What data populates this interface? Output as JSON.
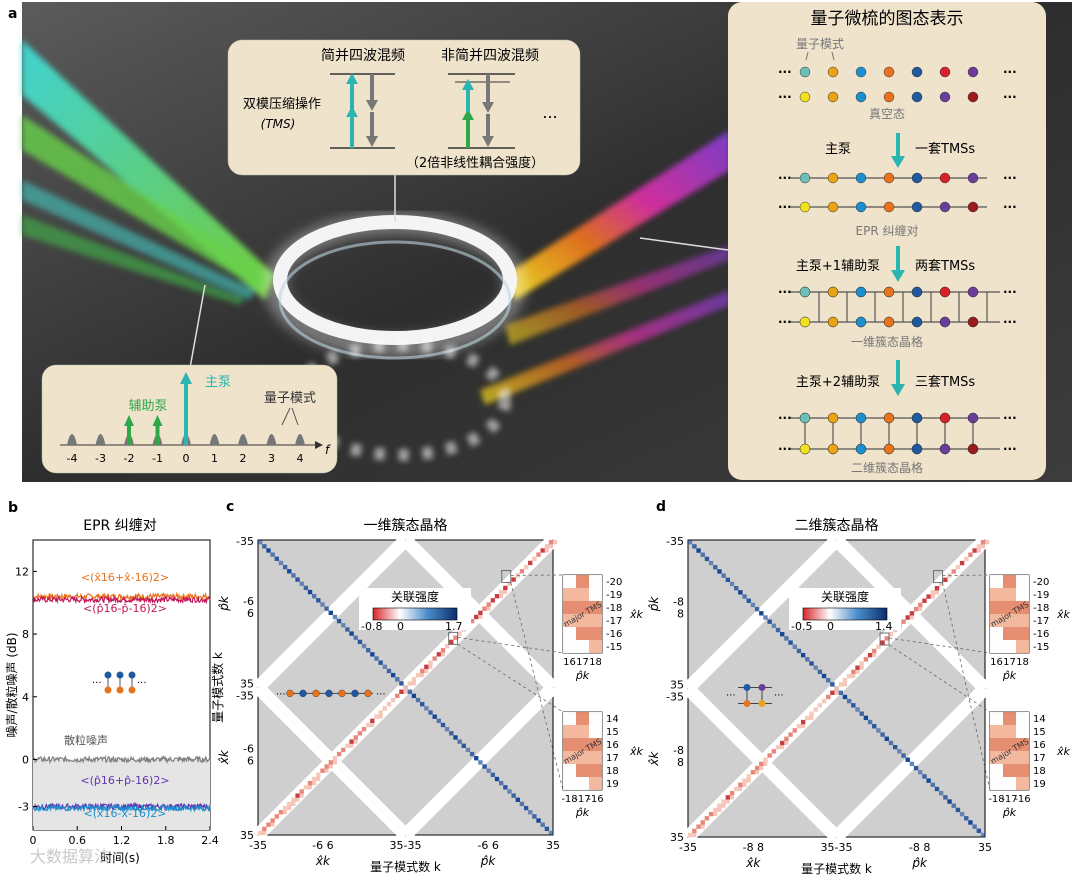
{
  "panel_a": {
    "label": "a",
    "tms_box": {
      "degenerate": "简并四波混频",
      "nondegenerate": "非简并四波混频",
      "operation": "双模压缩操作",
      "operation_abbr": "(TMS)",
      "ellipsis": "...",
      "note": "（2倍非线性耦合强度）"
    },
    "spectrum_box": {
      "main_pump": "主泵",
      "aux_pump": "辅助泵",
      "quantum_modes": "量子模式",
      "ticks": [
        "-4",
        "-3",
        "-2",
        "-1",
        "0",
        "1",
        "2",
        "3",
        "4"
      ],
      "axis_label": "f"
    },
    "graph_box": {
      "title": "量子微梳的图态表示",
      "quantum_modes": "量子模式",
      "vacuum": "真空态",
      "main_pump": "主泵",
      "one_set": "一套TMSs",
      "epr": "EPR 纠缠对",
      "pump_1aux": "主泵+1辅助泵",
      "two_sets": "两套TMSs",
      "cluster_1d": "一维簇态晶格",
      "pump_2aux": "主泵+2辅助泵",
      "three_sets": "三套TMSs",
      "cluster_2d": "二维簇态晶格",
      "dots": "···"
    },
    "colors": [
      "#6dbfb8",
      "#e8a317",
      "#1c8fce",
      "#e8731c",
      "#1f5aa0",
      "#d72027",
      "#6b3d9a"
    ],
    "colors_bottom": [
      "#f2e21c",
      "#e8a317",
      "#1c8fce",
      "#e8731c",
      "#1f5aa0",
      "#6b3d9a",
      "#9b1b1b"
    ]
  },
  "panel_b": {
    "label": "b",
    "title": "EPR 纠缠对",
    "ylabel": "噪声/散粒噪声 (dB)",
    "xlabel": "时间(s)",
    "shot_noise": "散粒噪声",
    "legend_x_sum": "<(x̂16+x̂-16)2>",
    "legend_p_diff": "<(p̂16-p̂-16)2>",
    "legend_p_sum": "<(p̂16+p̂-16)2>",
    "legend_x_diff": "<(x̂16-x̂-16)2>"
  },
  "panel_c": {
    "label": "c",
    "title": "一维簇态晶格",
    "colorbar_title": "关联强度",
    "cb_min": "-0.8",
    "cb_zero": "0",
    "cb_max": "1.7",
    "xlabel": "量子模式数 k",
    "ylabel": "量子模式数 k",
    "xk": "x̂k",
    "pk": "p̂k",
    "ticks_x": [
      "-35",
      "-6",
      "6",
      "35",
      "-35",
      "-6",
      "6",
      "35"
    ],
    "ticks_y": [
      "-35",
      "-6",
      "6",
      "35",
      "-6",
      "6",
      "35"
    ],
    "inset_top": {
      "rows": [
        "-20",
        "-19",
        "-18",
        "-17",
        "-16",
        "-15"
      ],
      "cols": [
        "16",
        "17",
        "18"
      ],
      "label": "major TMS"
    },
    "inset_bottom": {
      "rows": [
        "14",
        "15",
        "16",
        "17",
        "18",
        "19"
      ],
      "cols": [
        "-18",
        "-17",
        "-16"
      ],
      "label": "major TMS"
    }
  },
  "panel_d": {
    "label": "d",
    "title": "二维簇态晶格",
    "colorbar_title": "关联强度",
    "cb_min": "-0.5",
    "cb_zero": "0",
    "cb_max": "1.4",
    "xlabel": "量子模式数 k",
    "ticks_x": [
      "-35",
      "-8",
      "8",
      "35",
      "-35",
      "-8",
      "8",
      "35"
    ],
    "ticks_y": [
      "-35",
      "-8",
      "8",
      "35",
      "-8",
      "8",
      "35"
    ],
    "inset_top": {
      "rows": [
        "-20",
        "-19",
        "-18",
        "-17",
        "-16",
        "-15"
      ],
      "cols": [
        "16",
        "17",
        "18"
      ],
      "label": "major TMS"
    },
    "inset_bottom": {
      "rows": [
        "14",
        "15",
        "16",
        "17",
        "18",
        "19"
      ],
      "cols": [
        "-18",
        "-17",
        "-16"
      ],
      "label": "major TMS"
    }
  },
  "watermark": "大数据算法",
  "chart_data": [
    {
      "type": "line",
      "title": "EPR 纠缠对",
      "xlabel": "时间(s)",
      "ylabel": "噪声/散粒噪声 (dB)",
      "xlim": [
        0,
        2.4
      ],
      "ylim": [
        -4.5,
        14
      ],
      "xticks": [
        "0",
        "0.6",
        "1.2",
        "1.8",
        "2.4"
      ],
      "yticks": [
        "-3",
        "0",
        "4",
        "8",
        "12"
      ],
      "series": [
        {
          "name": "<(x̂16+x̂-16)2>",
          "color": "#e8731c",
          "mean": 10.4
        },
        {
          "name": "<(p̂16-p̂-16)2>",
          "color": "#c2185b",
          "mean": 10.2
        },
        {
          "name": "散粒噪声",
          "color": "#808080",
          "mean": 0.0
        },
        {
          "name": "<(p̂16+p̂-16)2>",
          "color": "#5e35b1",
          "mean": -3.0
        },
        {
          "name": "<(x̂16-x̂-16)2>",
          "color": "#1c8fce",
          "mean": -3.1
        }
      ]
    },
    {
      "type": "heatmap",
      "title": "一维簇态晶格",
      "range": [
        -0.8,
        1.7
      ],
      "axes": "x̂k, p̂k for k = -35..35"
    },
    {
      "type": "heatmap",
      "title": "二维簇态晶格",
      "range": [
        -0.5,
        1.4
      ],
      "axes": "x̂k, p̂k for k = -35..35"
    }
  ]
}
